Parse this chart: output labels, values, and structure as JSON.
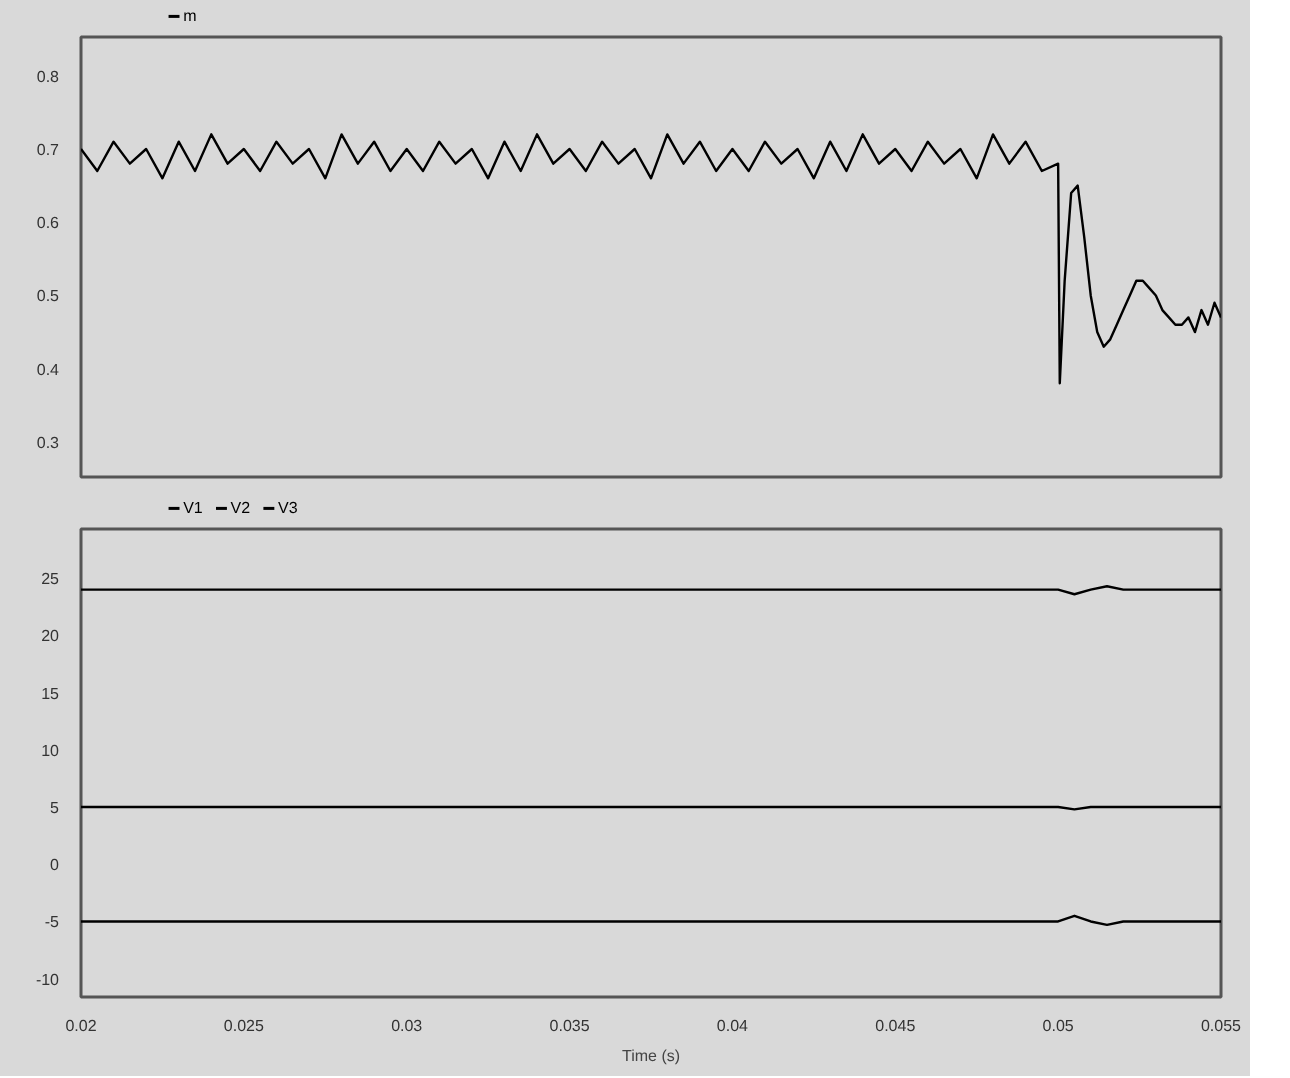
{
  "chart_data": [
    {
      "type": "line",
      "tick_labels": "y",
      "legend": "top left",
      "grid": false,
      "xlim": [
        0.02,
        0.055
      ],
      "ylim": [
        0.252,
        0.853
      ],
      "yticks": [
        0.3,
        0.4,
        0.5,
        0.6,
        0.7,
        0.8
      ],
      "series": [
        {
          "name": "m",
          "color": "#000000",
          "x": [
            0.02,
            0.0205,
            0.021,
            0.0215,
            0.022,
            0.0225,
            0.023,
            0.0235,
            0.024,
            0.0245,
            0.025,
            0.0255,
            0.026,
            0.0265,
            0.027,
            0.0275,
            0.028,
            0.0285,
            0.029,
            0.0295,
            0.03,
            0.0305,
            0.031,
            0.0315,
            0.032,
            0.0325,
            0.033,
            0.0335,
            0.034,
            0.0345,
            0.035,
            0.0355,
            0.036,
            0.0365,
            0.037,
            0.0375,
            0.038,
            0.0385,
            0.039,
            0.0395,
            0.04,
            0.0405,
            0.041,
            0.0415,
            0.042,
            0.0425,
            0.043,
            0.0435,
            0.044,
            0.0445,
            0.045,
            0.0455,
            0.046,
            0.0465,
            0.047,
            0.0475,
            0.048,
            0.0485,
            0.049,
            0.0495,
            0.05,
            0.05005,
            0.0502,
            0.0504,
            0.0506,
            0.0508,
            0.051,
            0.0512,
            0.0514,
            0.0516,
            0.0518,
            0.052,
            0.0522,
            0.0524,
            0.0526,
            0.0528,
            0.053,
            0.0532,
            0.0534,
            0.0536,
            0.0538,
            0.054,
            0.0542,
            0.0544,
            0.0546,
            0.0548,
            0.055
          ],
          "values": [
            0.7,
            0.67,
            0.71,
            0.68,
            0.7,
            0.66,
            0.71,
            0.67,
            0.72,
            0.68,
            0.7,
            0.67,
            0.71,
            0.68,
            0.7,
            0.66,
            0.72,
            0.68,
            0.71,
            0.67,
            0.7,
            0.67,
            0.71,
            0.68,
            0.7,
            0.66,
            0.71,
            0.67,
            0.72,
            0.68,
            0.7,
            0.67,
            0.71,
            0.68,
            0.7,
            0.66,
            0.72,
            0.68,
            0.71,
            0.67,
            0.7,
            0.67,
            0.71,
            0.68,
            0.7,
            0.66,
            0.71,
            0.67,
            0.72,
            0.68,
            0.7,
            0.67,
            0.71,
            0.68,
            0.7,
            0.66,
            0.72,
            0.68,
            0.71,
            0.67,
            0.68,
            0.38,
            0.52,
            0.64,
            0.65,
            0.58,
            0.5,
            0.45,
            0.43,
            0.44,
            0.46,
            0.48,
            0.5,
            0.52,
            0.52,
            0.51,
            0.5,
            0.48,
            0.47,
            0.46,
            0.46,
            0.47,
            0.45,
            0.48,
            0.46,
            0.49,
            0.47
          ]
        }
      ]
    },
    {
      "type": "line",
      "legend": "top left",
      "grid": false,
      "xlabel": "Time (s)",
      "xlim": [
        0.02,
        0.055
      ],
      "ylim": [
        -11.6,
        29.3
      ],
      "yticks": [
        -10,
        -5,
        0,
        5,
        10,
        15,
        20,
        25
      ],
      "xticks": [
        0.02,
        0.025,
        0.03,
        0.035,
        0.04,
        0.045,
        0.05,
        0.055
      ],
      "series": [
        {
          "name": "V1",
          "color": "#000000",
          "x": [
            0.02,
            0.05,
            0.0505,
            0.051,
            0.0515,
            0.052,
            0.055
          ],
          "values": [
            24,
            24,
            23.6,
            24,
            24.3,
            24,
            24
          ]
        },
        {
          "name": "V2",
          "color": "#000000",
          "x": [
            0.02,
            0.05,
            0.0505,
            0.051,
            0.055
          ],
          "values": [
            5,
            5,
            4.8,
            5,
            5
          ]
        },
        {
          "name": "V3",
          "color": "#000000",
          "x": [
            0.02,
            0.05,
            0.0505,
            0.051,
            0.0515,
            0.052,
            0.055
          ],
          "values": [
            -5,
            -5,
            -4.5,
            -5,
            -5.3,
            -5,
            -5
          ]
        }
      ]
    }
  ]
}
